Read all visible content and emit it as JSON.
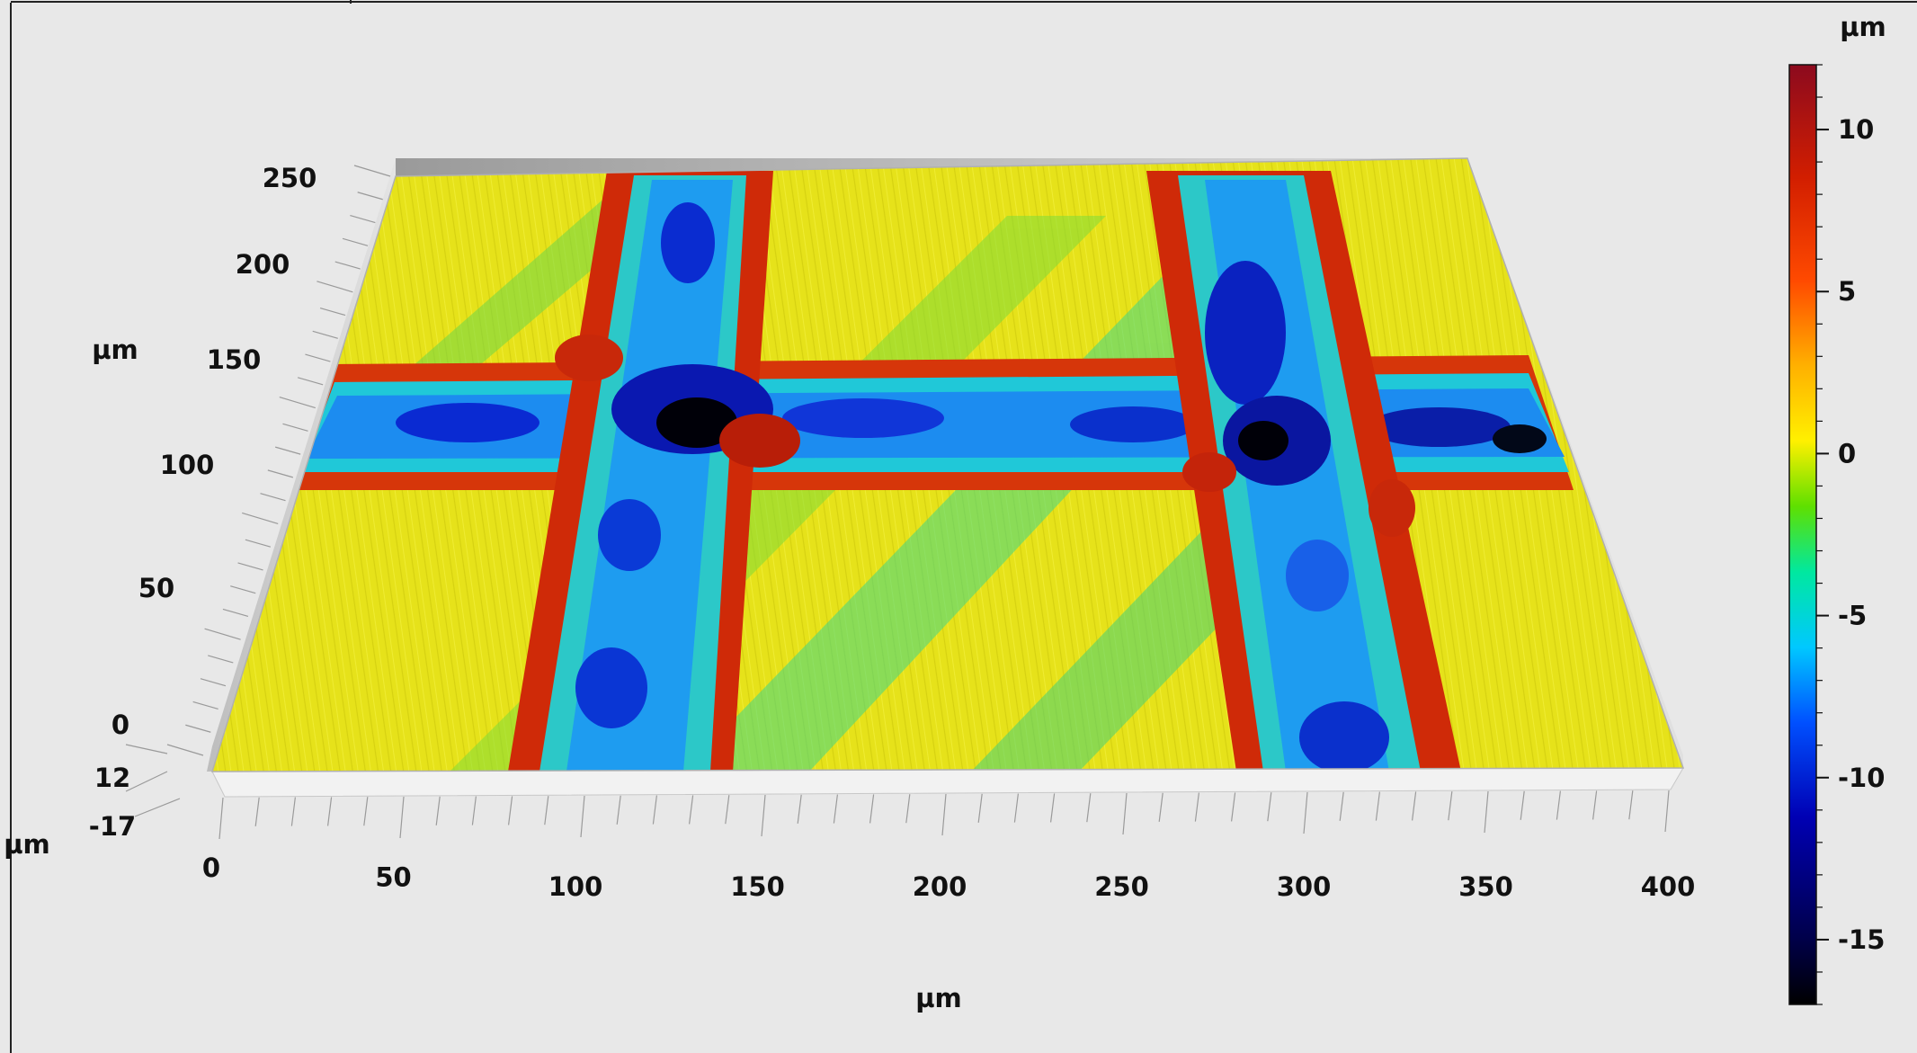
{
  "chart_data": {
    "type": "surface-3d",
    "title": "",
    "x_axis": {
      "label": "µm",
      "range": [
        0,
        400
      ],
      "tick_labels": [
        "0",
        "50",
        "100",
        "150",
        "200",
        "250",
        "300",
        "350",
        "400"
      ]
    },
    "y_axis": {
      "label": "µm",
      "range": [
        0,
        250
      ],
      "tick_labels": [
        "0",
        "50",
        "100",
        "150",
        "200",
        "250"
      ]
    },
    "z_axis": {
      "label": "µm",
      "range": [
        -17,
        12
      ],
      "tick_labels": [
        "12",
        "-17"
      ]
    },
    "colorbar": {
      "unit": "µm",
      "range": [
        -17,
        12
      ],
      "tick_labels": [
        "10",
        "5",
        "0",
        "-5",
        "-10",
        "-15"
      ],
      "colormap": [
        "#000000",
        "#00004a",
        "#0000b4",
        "#0050ff",
        "#00c8ff",
        "#00e8a0",
        "#5fe000",
        "#fff000",
        "#ffb000",
        "#ff4a00",
        "#d21e00",
        "#8c0a1e"
      ]
    },
    "features": [
      {
        "kind": "ridged trench",
        "orientation": "vertical",
        "x_center_um": 110
      },
      {
        "kind": "ridged trench",
        "orientation": "vertical",
        "x_center_um": 300
      },
      {
        "kind": "ridged trench",
        "orientation": "horizontal",
        "y_center_um": 115
      }
    ]
  }
}
